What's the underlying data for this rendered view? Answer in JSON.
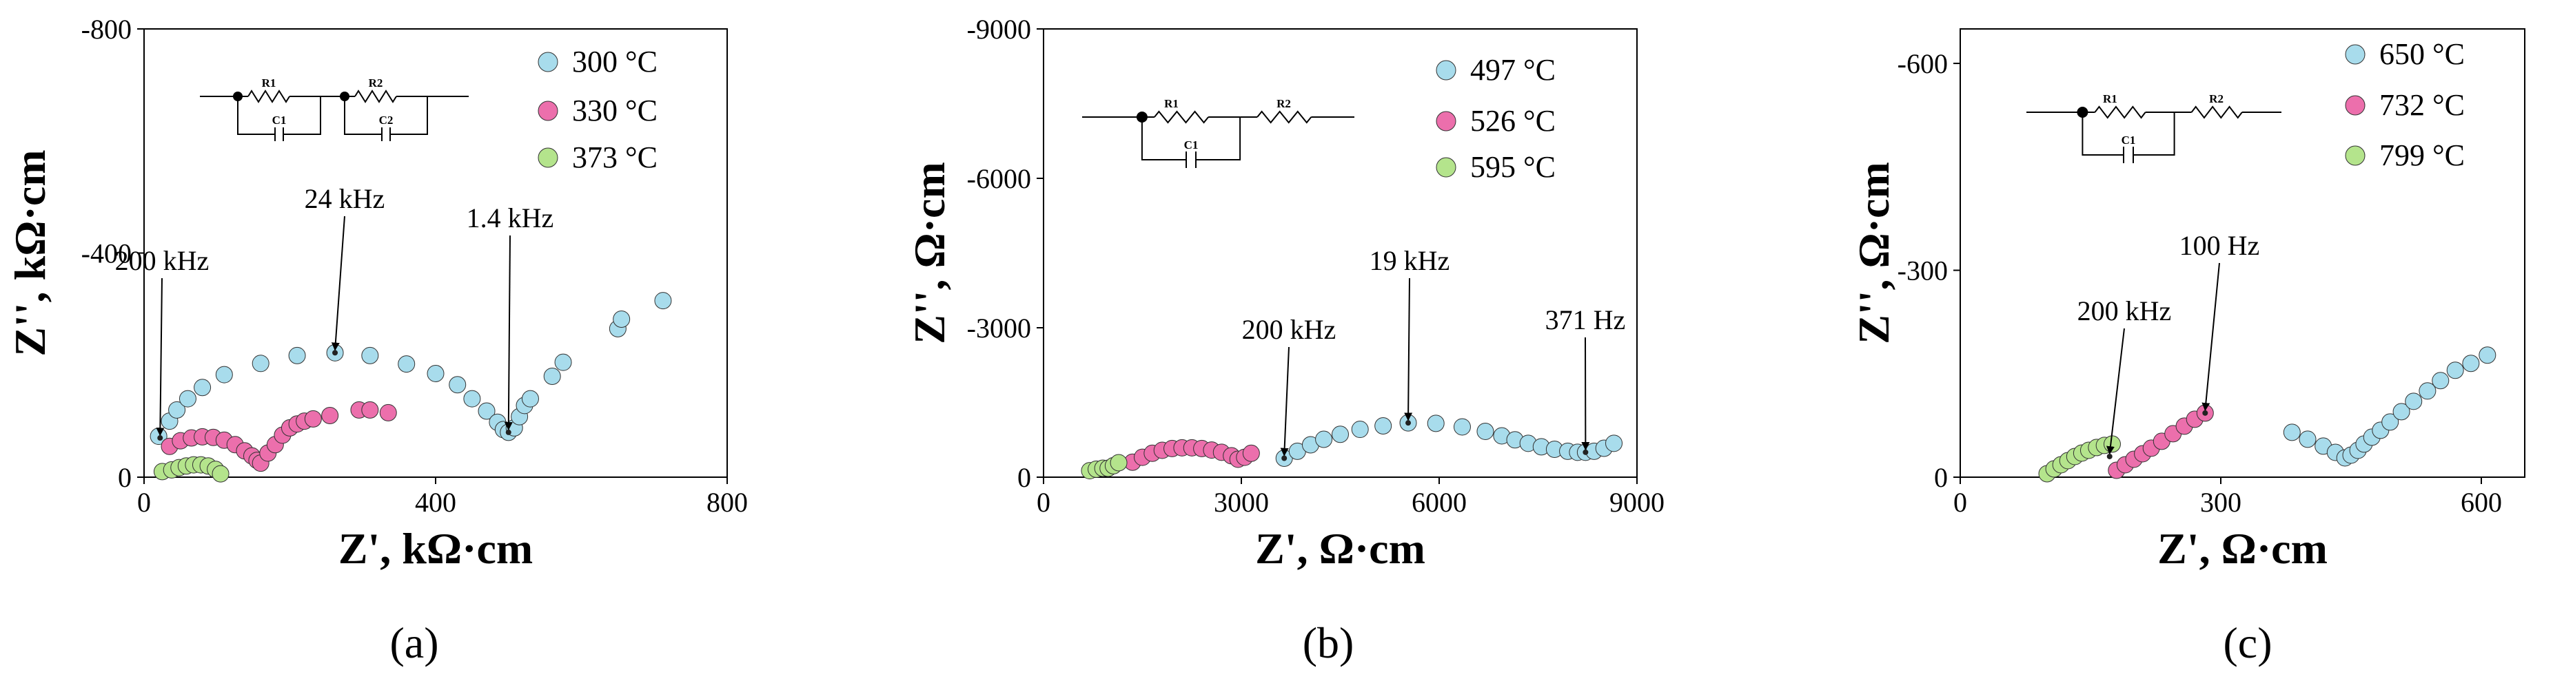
{
  "chart_data": [
    {
      "type": "scatter",
      "caption": "(a)",
      "xlabel": "Z', kΩ·cm",
      "ylabel": "Z'', kΩ·cm",
      "xlim": [
        0,
        800
      ],
      "ylim": [
        0,
        -800
      ],
      "xticks": [
        0,
        400,
        800
      ],
      "yticks": [
        0,
        -400,
        -800
      ],
      "tick_labels": {
        "x": [
          "0",
          "400",
          "800"
        ],
        "y": [
          "0",
          "-400",
          "-800"
        ]
      },
      "legend": [
        "300 °C",
        "330 °C",
        "373 °C"
      ],
      "colors": [
        "#a8dcec",
        "#ec6fac",
        "#b4e48c"
      ],
      "circuit": {
        "elements": [
          "R1",
          "C1",
          "R2",
          "C2"
        ]
      },
      "annotations": [
        {
          "text": "200 kHz",
          "x": 22,
          "y": -70
        },
        {
          "text": "24 kHz",
          "x": 262,
          "y": -222
        },
        {
          "text": "1.4 kHz",
          "x": 500,
          "y": -80
        }
      ],
      "series": [
        {
          "name": "300 °C",
          "points": [
            [
              20,
              -73
            ],
            [
              35,
              -100
            ],
            [
              45,
              -120
            ],
            [
              60,
              -140
            ],
            [
              80,
              -160
            ],
            [
              110,
              -183
            ],
            [
              160,
              -203
            ],
            [
              210,
              -217
            ],
            [
              262,
              -222
            ],
            [
              310,
              -217
            ],
            [
              360,
              -202
            ],
            [
              400,
              -185
            ],
            [
              430,
              -165
            ],
            [
              450,
              -140
            ],
            [
              470,
              -118
            ],
            [
              485,
              -98
            ],
            [
              493,
              -85
            ],
            [
              500,
              -80
            ],
            [
              508,
              -88
            ],
            [
              515,
              -108
            ],
            [
              522,
              -128
            ],
            [
              530,
              -140
            ],
            [
              560,
              -180
            ],
            [
              575,
              -205
            ],
            [
              650,
              -265
            ],
            [
              655,
              -282
            ],
            [
              712,
              -315
            ]
          ]
        },
        {
          "name": "330 °C",
          "points": [
            [
              35,
              -55
            ],
            [
              50,
              -65
            ],
            [
              65,
              -70
            ],
            [
              80,
              -72
            ],
            [
              95,
              -71
            ],
            [
              110,
              -66
            ],
            [
              125,
              -58
            ],
            [
              138,
              -47
            ],
            [
              148,
              -38
            ],
            [
              155,
              -30
            ],
            [
              160,
              -25
            ],
            [
              170,
              -43
            ],
            [
              180,
              -58
            ],
            [
              190,
              -75
            ],
            [
              200,
              -88
            ],
            [
              210,
              -95
            ],
            [
              220,
              -100
            ],
            [
              232,
              -104
            ],
            [
              255,
              -110
            ],
            [
              295,
              -120
            ],
            [
              310,
              -120
            ],
            [
              335,
              -115
            ]
          ]
        },
        {
          "name": "373 °C",
          "points": [
            [
              25,
              -10
            ],
            [
              38,
              -13
            ],
            [
              48,
              -17
            ],
            [
              58,
              -20
            ],
            [
              68,
              -22
            ],
            [
              78,
              -22
            ],
            [
              88,
              -20
            ],
            [
              98,
              -14
            ],
            [
              105,
              -6
            ]
          ]
        }
      ]
    },
    {
      "type": "scatter",
      "caption": "(b)",
      "xlabel": "Z', Ω·cm",
      "ylabel": "Z'', Ω·cm",
      "xlim": [
        0,
        9000
      ],
      "ylim": [
        0,
        -9000
      ],
      "xticks": [
        0,
        3000,
        6000,
        9000
      ],
      "yticks": [
        0,
        -3000,
        -6000,
        -9000
      ],
      "tick_labels": {
        "x": [
          "0",
          "3000",
          "6000",
          "9000"
        ],
        "y": [
          "0",
          "-3000",
          "-6000",
          "-9000"
        ]
      },
      "legend": [
        "497 °C",
        "526 °C",
        "595 °C"
      ],
      "colors": [
        "#a8dcec",
        "#ec6fac",
        "#b4e48c"
      ],
      "circuit": {
        "elements": [
          "R1",
          "C1",
          "R2"
        ]
      },
      "annotations": [
        {
          "text": "200 kHz",
          "x": 3650,
          "y": -380
        },
        {
          "text": "19 kHz",
          "x": 5530,
          "y": -1090
        },
        {
          "text": "371 Hz",
          "x": 8220,
          "y": -500
        }
      ],
      "series": [
        {
          "name": "497 °C",
          "points": [
            [
              3650,
              -380
            ],
            [
              3850,
              -520
            ],
            [
              4050,
              -650
            ],
            [
              4250,
              -760
            ],
            [
              4500,
              -860
            ],
            [
              4800,
              -960
            ],
            [
              5150,
              -1030
            ],
            [
              5530,
              -1090
            ],
            [
              5950,
              -1080
            ],
            [
              6350,
              -1010
            ],
            [
              6700,
              -920
            ],
            [
              6950,
              -830
            ],
            [
              7150,
              -750
            ],
            [
              7350,
              -680
            ],
            [
              7550,
              -610
            ],
            [
              7750,
              -560
            ],
            [
              7950,
              -520
            ],
            [
              8100,
              -500
            ],
            [
              8220,
              -500
            ],
            [
              8350,
              -520
            ],
            [
              8500,
              -580
            ],
            [
              8650,
              -680
            ]
          ]
        },
        {
          "name": "526 °C",
          "points": [
            [
              1350,
              -300
            ],
            [
              1500,
              -400
            ],
            [
              1650,
              -480
            ],
            [
              1800,
              -540
            ],
            [
              1950,
              -575
            ],
            [
              2100,
              -590
            ],
            [
              2250,
              -590
            ],
            [
              2400,
              -575
            ],
            [
              2550,
              -545
            ],
            [
              2700,
              -500
            ],
            [
              2850,
              -430
            ],
            [
              2950,
              -360
            ],
            [
              3050,
              -400
            ],
            [
              3150,
              -480
            ]
          ]
        },
        {
          "name": "595 °C",
          "points": [
            [
              700,
              -130
            ],
            [
              800,
              -160
            ],
            [
              900,
              -180
            ],
            [
              980,
              -180
            ],
            [
              1060,
              -230
            ],
            [
              1140,
              -290
            ]
          ]
        }
      ]
    },
    {
      "type": "scatter",
      "caption": "(c)",
      "xlabel": "Z', Ω·cm",
      "ylabel": "Z'', Ω·cm",
      "xlim": [
        0,
        650
      ],
      "ylim": [
        0,
        -650
      ],
      "xticks": [
        0,
        300,
        600
      ],
      "yticks": [
        0,
        -300,
        -600
      ],
      "tick_labels": {
        "x": [
          "0",
          "300",
          "600"
        ],
        "y": [
          "0",
          "-300",
          "-600"
        ]
      },
      "legend": [
        "650 °C",
        "732 °C",
        "799 °C"
      ],
      "colors": [
        "#a8dcec",
        "#ec6fac",
        "#b4e48c"
      ],
      "circuit": {
        "elements": [
          "R1",
          "C1",
          "R2"
        ]
      },
      "annotations": [
        {
          "text": "200 kHz",
          "x": 172,
          "y": -30
        },
        {
          "text": "100 Hz",
          "x": 282,
          "y": -93
        }
      ],
      "series": [
        {
          "name": "650 °C",
          "points": [
            [
              382,
              -65
            ],
            [
              400,
              -55
            ],
            [
              418,
              -45
            ],
            [
              432,
              -36
            ],
            [
              443,
              -28
            ],
            [
              450,
              -32
            ],
            [
              458,
              -39
            ],
            [
              465,
              -48
            ],
            [
              474,
              -58
            ],
            [
              484,
              -68
            ],
            [
              495,
              -80
            ],
            [
              508,
              -95
            ],
            [
              522,
              -110
            ],
            [
              538,
              -125
            ],
            [
              553,
              -140
            ],
            [
              570,
              -155
            ],
            [
              588,
              -165
            ],
            [
              607,
              -177
            ]
          ]
        },
        {
          "name": "732 °C",
          "points": [
            [
              180,
              -10
            ],
            [
              190,
              -18
            ],
            [
              200,
              -26
            ],
            [
              210,
              -34
            ],
            [
              220,
              -42
            ],
            [
              232,
              -52
            ],
            [
              245,
              -63
            ],
            [
              258,
              -74
            ],
            [
              270,
              -84
            ],
            [
              282,
              -93
            ]
          ]
        },
        {
          "name": "799 °C",
          "points": [
            [
              100,
              -5
            ],
            [
              108,
              -12
            ],
            [
              116,
              -18
            ],
            [
              124,
              -24
            ],
            [
              132,
              -30
            ],
            [
              140,
              -35
            ],
            [
              148,
              -39
            ],
            [
              157,
              -43
            ],
            [
              166,
              -46
            ],
            [
              175,
              -48
            ]
          ]
        }
      ]
    }
  ]
}
